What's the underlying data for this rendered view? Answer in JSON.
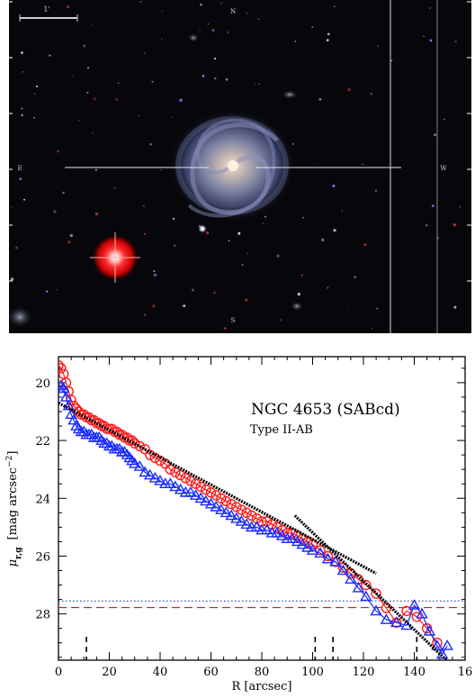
{
  "image_panel": {
    "scale_bar_label": "1'",
    "compass": {
      "north": "N",
      "east": "E",
      "west": "W",
      "south": "S"
    }
  },
  "colors": {
    "r_band": "#ff1a1a",
    "g_band": "#1a2cff",
    "fit": "#000000",
    "sky_r": "#cc0000",
    "sky_g": "#1a1aaa"
  },
  "chart_data": {
    "type": "scatter",
    "title": "NGC 4653 (SABcd)",
    "subtitle": "Type II-AB",
    "xlabel": "R [arcsec]",
    "ylabel": "μ_{r,g} [mag arcsec^{-2}]",
    "xlim": [
      0,
      160
    ],
    "ylim": [
      29.6,
      19.1
    ],
    "x_ticks": [
      "0",
      "20",
      "40",
      "60",
      "80",
      "100",
      "120",
      "140",
      "16"
    ],
    "y_ticks": [
      "20",
      "22",
      "24",
      "26",
      "28"
    ],
    "series": [
      {
        "band": "r",
        "marker": "circle",
        "x": [
          0,
          1,
          2,
          3,
          4,
          5,
          6,
          7,
          8,
          9,
          10,
          11,
          12,
          13,
          14,
          15,
          16,
          17,
          18,
          19,
          20,
          21,
          22,
          23,
          24,
          25,
          26,
          27,
          28,
          29,
          30,
          32,
          34,
          36,
          38,
          40,
          42,
          44,
          46,
          48,
          50,
          52,
          54,
          56,
          58,
          60,
          62,
          64,
          66,
          68,
          70,
          72,
          74,
          76,
          78,
          80,
          82,
          84,
          86,
          88,
          90,
          92,
          94,
          96,
          98,
          100,
          103,
          106,
          109,
          112,
          115,
          118,
          121,
          125,
          129,
          133,
          137,
          141,
          145,
          149
        ],
        "y": [
          19.4,
          19.5,
          19.7,
          20.0,
          20.3,
          20.6,
          20.8,
          20.9,
          21.0,
          21.1,
          21.1,
          21.2,
          21.2,
          21.3,
          21.3,
          21.4,
          21.4,
          21.5,
          21.5,
          21.6,
          21.6,
          21.6,
          21.7,
          21.7,
          21.8,
          21.8,
          21.9,
          21.9,
          22.0,
          22.0,
          22.1,
          22.2,
          22.3,
          22.5,
          22.6,
          22.7,
          22.8,
          23.0,
          23.1,
          23.2,
          23.3,
          23.4,
          23.5,
          23.6,
          23.7,
          23.8,
          23.9,
          24.0,
          24.1,
          24.2,
          24.3,
          24.4,
          24.5,
          24.6,
          24.7,
          24.8,
          24.8,
          24.9,
          25.0,
          25.1,
          25.2,
          25.2,
          25.3,
          25.4,
          25.5,
          25.6,
          25.8,
          26.0,
          26.2,
          26.4,
          26.6,
          26.8,
          27.0,
          27.3,
          27.8,
          28.3,
          27.9,
          28.1,
          28.5,
          29.0
        ]
      },
      {
        "band": "g",
        "marker": "triangle",
        "x": [
          0,
          1,
          2,
          3,
          4,
          5,
          6,
          7,
          8,
          9,
          10,
          11,
          12,
          13,
          14,
          15,
          16,
          17,
          18,
          19,
          20,
          21,
          22,
          23,
          24,
          25,
          26,
          27,
          28,
          29,
          30,
          32,
          34,
          36,
          38,
          40,
          42,
          44,
          46,
          48,
          50,
          52,
          54,
          56,
          58,
          60,
          62,
          64,
          66,
          68,
          70,
          72,
          74,
          76,
          78,
          80,
          82,
          84,
          86,
          88,
          90,
          92,
          94,
          96,
          98,
          100,
          103,
          106,
          109,
          112,
          115,
          118,
          121,
          125,
          129,
          133,
          137,
          140,
          143,
          146,
          149,
          151,
          153
        ],
        "y": [
          20.2,
          20.1,
          20.2,
          20.5,
          20.8,
          21.1,
          21.3,
          21.5,
          21.6,
          21.7,
          21.7,
          21.8,
          21.8,
          21.8,
          21.9,
          21.9,
          21.9,
          22.0,
          22.1,
          22.1,
          22.2,
          22.2,
          22.3,
          22.3,
          22.3,
          22.4,
          22.4,
          22.5,
          22.6,
          22.7,
          22.8,
          22.9,
          23.1,
          23.2,
          23.3,
          23.4,
          23.5,
          23.5,
          23.6,
          23.7,
          23.8,
          23.8,
          23.9,
          24.0,
          24.1,
          24.2,
          24.3,
          24.4,
          24.5,
          24.6,
          24.7,
          24.8,
          24.9,
          25.0,
          25.0,
          25.1,
          25.1,
          25.2,
          25.2,
          25.3,
          25.4,
          25.4,
          25.5,
          25.6,
          25.7,
          25.8,
          25.9,
          26.1,
          26.2,
          26.5,
          26.8,
          27.1,
          27.4,
          27.9,
          28.2,
          28.3,
          28.4,
          27.7,
          28.0,
          28.6,
          29.1,
          29.4,
          29.1
        ]
      }
    ],
    "fits": [
      {
        "x": [
          0,
          125
        ],
        "y": [
          20.7,
          26.6
        ]
      },
      {
        "x": [
          93,
          155
        ],
        "y": [
          24.6,
          29.8
        ]
      }
    ],
    "sky_levels": [
      {
        "band": "g",
        "y": 27.55,
        "style": "dotted"
      },
      {
        "band": "r",
        "y": 27.78,
        "style": "dashed"
      }
    ],
    "break_markers_x": [
      11,
      101,
      108,
      141
    ]
  }
}
